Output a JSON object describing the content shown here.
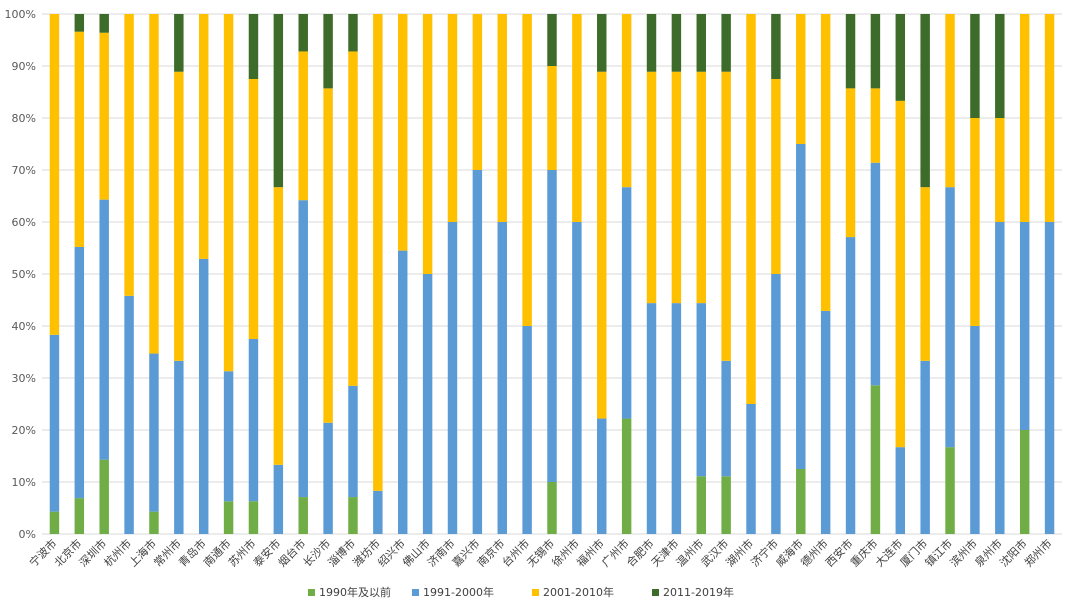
{
  "chart_data": {
    "type": "bar",
    "stacked": true,
    "percent": true,
    "ylim": [
      0,
      100
    ],
    "yticks": [
      "0%",
      "10%",
      "20%",
      "30%",
      "40%",
      "50%",
      "60%",
      "70%",
      "80%",
      "90%",
      "100%"
    ],
    "grid": true,
    "legend_position": "bottom",
    "categories": [
      "宁波市",
      "北京市",
      "深圳市",
      "杭州市",
      "上海市",
      "常州市",
      "青岛市",
      "南通市",
      "苏州市",
      "泰安市",
      "烟台市",
      "长沙市",
      "淄博市",
      "潍坊市",
      "绍兴市",
      "佛山市",
      "济南市",
      "嘉兴市",
      "南京市",
      "台州市",
      "无锡市",
      "徐州市",
      "福州市",
      "广州市",
      "合肥市",
      "天津市",
      "温州市",
      "武汉市",
      "湖州市",
      "济宁市",
      "威海市",
      "德州市",
      "西安市",
      "重庆市",
      "大连市",
      "厦门市",
      "镇江市",
      "滨州市",
      "泉州市",
      "沈阳市",
      "郑州市"
    ],
    "series": [
      {
        "name": "1990年及以前",
        "color": "#70ad47",
        "values": [
          4.3,
          6.9,
          14.3,
          0,
          4.3,
          0,
          0,
          6.3,
          6.3,
          0,
          7.1,
          0,
          7.1,
          0,
          0,
          0,
          0,
          0,
          0,
          0,
          10.0,
          0,
          0,
          22.2,
          0,
          0,
          11.1,
          11.1,
          0,
          0,
          12.5,
          0,
          0,
          28.6,
          0,
          0,
          16.7,
          0,
          0,
          20.0,
          0
        ]
      },
      {
        "name": "1991-2000年",
        "color": "#5b9bd5",
        "values": [
          34.0,
          48.3,
          50.0,
          45.8,
          30.4,
          33.3,
          52.9,
          25.0,
          31.2,
          13.3,
          57.1,
          21.4,
          21.4,
          8.3,
          54.5,
          50.0,
          60.0,
          70.0,
          60.0,
          40.0,
          60.0,
          60.0,
          22.2,
          44.5,
          44.4,
          44.4,
          33.3,
          22.2,
          25.0,
          50.0,
          62.5,
          42.9,
          57.1,
          42.8,
          16.7,
          33.3,
          50.0,
          40.0,
          60.0,
          40.0,
          60.0
        ]
      },
      {
        "name": "2001-2010年",
        "color": "#ffc000",
        "values": [
          61.7,
          41.4,
          32.1,
          54.2,
          65.3,
          55.6,
          47.1,
          68.7,
          50.0,
          53.4,
          28.6,
          64.3,
          64.3,
          91.7,
          45.5,
          50.0,
          40.0,
          30.0,
          40.0,
          60.0,
          20.0,
          40.0,
          66.7,
          33.3,
          44.5,
          44.5,
          44.5,
          55.6,
          75.0,
          37.5,
          25.0,
          57.1,
          28.6,
          14.3,
          66.6,
          33.4,
          33.3,
          40.0,
          20.0,
          40.0,
          40.0
        ]
      },
      {
        "name": "2011-2019年",
        "color": "#3d6b2a",
        "values": [
          0,
          3.4,
          3.6,
          0,
          0,
          11.1,
          0,
          0,
          12.5,
          33.3,
          7.2,
          14.3,
          7.2,
          0,
          0,
          0,
          0,
          0,
          0,
          0,
          10.0,
          0,
          11.1,
          0,
          11.1,
          11.1,
          11.1,
          11.1,
          0,
          12.5,
          0,
          0,
          14.3,
          14.3,
          16.7,
          33.3,
          0,
          20.0,
          20.0,
          0,
          0
        ]
      }
    ]
  }
}
